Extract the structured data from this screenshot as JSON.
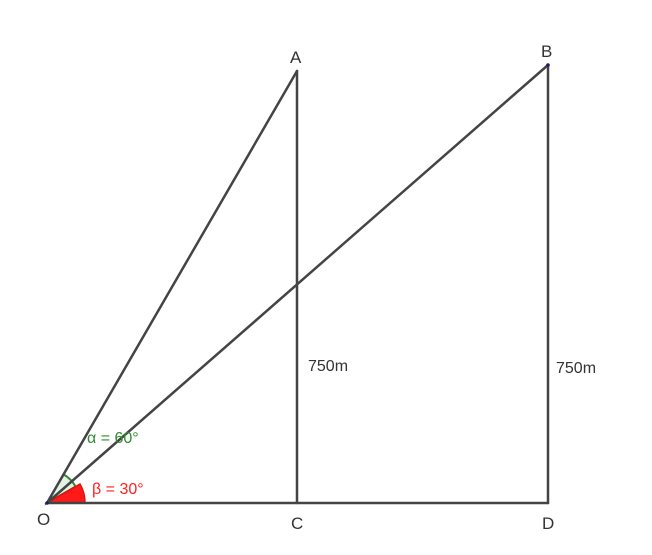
{
  "points": {
    "O": "O",
    "A": "A",
    "B": "B",
    "C": "C",
    "D": "D"
  },
  "lengths": {
    "AC": "750m",
    "BD": "750m"
  },
  "angles": {
    "alpha": {
      "label": "α = 60°",
      "color": "#2e8b2e"
    },
    "beta": {
      "label": "β = 30°",
      "color": "#ff2020"
    }
  },
  "colors": {
    "line": "#444444"
  }
}
